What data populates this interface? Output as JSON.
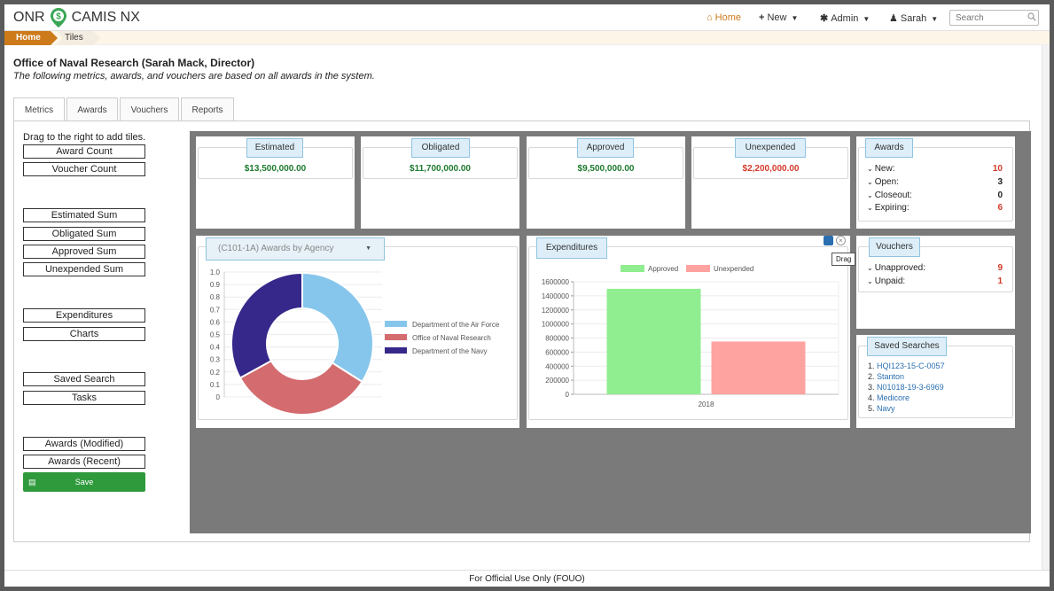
{
  "brand": {
    "left": "ONR",
    "right": "CAMIS NX",
    "pin_glyph": "$",
    "pin_icon": "location-pin-icon"
  },
  "nav": {
    "home": "Home",
    "new": "New",
    "admin": "Admin",
    "user": "Sarah",
    "search_placeholder": "Search"
  },
  "breadcrumb": {
    "home": "Home",
    "current": "Tiles"
  },
  "header": {
    "title": "Office of Naval Research (Sarah Mack, Director)",
    "subtitle": "The following metrics, awards, and vouchers are based on all awards in the system."
  },
  "tabs": [
    "Metrics",
    "Awards",
    "Vouchers",
    "Reports"
  ],
  "palette": {
    "hint": "Drag to the right to add tiles.",
    "items": [
      "Award Count",
      "Voucher Count",
      "Estimated Sum",
      "Obligated Sum",
      "Approved Sum",
      "Unexpended Sum",
      "Expenditures",
      "Charts",
      "Saved Search",
      "Tasks",
      "Awards (Modified)",
      "Awards (Recent)"
    ],
    "save": "Save"
  },
  "tiles": {
    "estimated": {
      "label": "Estimated",
      "value": "$13,500,000.00"
    },
    "obligated": {
      "label": "Obligated",
      "value": "$11,700,000.00"
    },
    "approved": {
      "label": "Approved",
      "value": "$9,500,000.00"
    },
    "unexpended": {
      "label": "Unexpended",
      "value": "$2,200,000.00"
    },
    "awards": {
      "label": "Awards",
      "rows": [
        {
          "label": "New:",
          "value": "10"
        },
        {
          "label": "Open:",
          "value": "3"
        },
        {
          "label": "Closeout:",
          "value": "0"
        },
        {
          "label": "Expiring:",
          "value": "6"
        }
      ]
    },
    "vouchers": {
      "label": "Vouchers",
      "rows": [
        {
          "label": "Unapproved:",
          "value": "9"
        },
        {
          "label": "Unpaid:",
          "value": "1"
        }
      ]
    },
    "saved": {
      "label": "Saved Searches",
      "items": [
        {
          "num": "1.",
          "text": "HQI123-15-C-0057"
        },
        {
          "num": "2.",
          "text": "Stanton"
        },
        {
          "num": "3.",
          "text": "N01018-19-3-6969"
        },
        {
          "num": "4.",
          "text": "Medicore"
        },
        {
          "num": "5.",
          "text": "Navy"
        }
      ]
    },
    "agency": {
      "select": "(C101-1A) Awards by Agency"
    },
    "expenditures": {
      "label": "Expenditures",
      "tooltip": "Drag"
    }
  },
  "colors": {
    "money_green": "#1e7a2e",
    "money_red": "#d43a2a",
    "stat_red": "#d43a2a",
    "accent_orange": "#cd7a1a",
    "save_green": "#2e9a3c"
  },
  "chart_data": [
    {
      "type": "pie",
      "variant": "donut",
      "categories": [
        "Department of the Air Force",
        "Office of Naval Research",
        "Department of the Navy"
      ],
      "values": [
        0.34,
        0.33,
        0.33
      ],
      "colors": [
        "#87c6ec",
        "#d36b6f",
        "#36288a"
      ],
      "yticks": [
        "1.0",
        "0.9",
        "0.8",
        "0.7",
        "0.6",
        "0.5",
        "0.4",
        "0.3",
        "0.2",
        "0.1",
        "0"
      ],
      "legend": "right"
    },
    {
      "type": "bar",
      "categories": [
        "2018"
      ],
      "series": [
        {
          "name": "Approved",
          "values": [
            1500000
          ],
          "color": "#90ee90"
        },
        {
          "name": "Unexpended",
          "values": [
            750000
          ],
          "color": "#ffa3a0"
        }
      ],
      "ylim": [
        0,
        1600000
      ],
      "yticks": [
        "1600000",
        "1400000",
        "1200000",
        "1000000",
        "800000",
        "600000",
        "400000",
        "200000",
        "0"
      ],
      "legend": "top"
    }
  ],
  "footer": "For Official Use Only (FOUO)"
}
